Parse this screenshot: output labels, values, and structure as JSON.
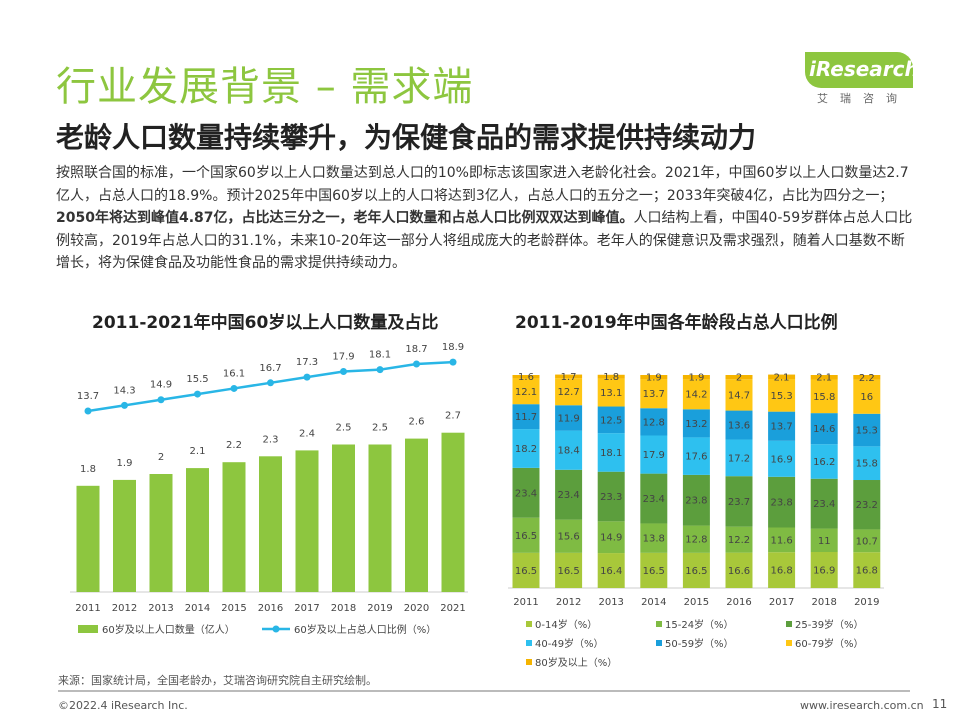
{
  "header": {
    "title": "行业发展背景 – 需求端",
    "subtitle": "老龄人口数量持续攀升，为保健食品的需求提供持续动力",
    "logo_text": "iResearch",
    "logo_sub": "艾瑞咨询"
  },
  "body": {
    "p1": "按照联合国的标准，一个国家60岁以上人口数量达到总人口的10%即标志该国家进入老龄化社会。2021年，中国60岁以上人口数量达2.7亿人，占总人口的18.9%。预计2025年中国60岁以上的人口将达到3亿人，占总人口的五分之一；2033年突破4亿，占比为四分之一；",
    "p1_bold": "2050年将达到峰值4.87亿，占比达三分之一，老年人口数量和占总人口比例双双达到峰值。",
    "p2": "人口结构上看，中国40-59岁群体占总人口比例较高，2019年占总人口的31.1%，未来10-20年这一部分人将组成庞大的老龄群体。老年人的保健意识及需求强烈，随着人口基数不断增长，将为保健食品及功能性食品的需求提供持续动力。"
  },
  "chart_data": [
    {
      "type": "bar",
      "title": "2011-2021年中国60岁以上人口数量及占比",
      "categories": [
        "2011",
        "2012",
        "2013",
        "2014",
        "2015",
        "2016",
        "2017",
        "2018",
        "2019",
        "2020",
        "2021"
      ],
      "series": [
        {
          "name": "60岁及以上人口数量（亿人）",
          "type": "bar",
          "color": "#8dc63f",
          "values": [
            1.8,
            1.9,
            2.0,
            2.1,
            2.2,
            2.3,
            2.4,
            2.5,
            2.5,
            2.6,
            2.7
          ]
        },
        {
          "name": "60岁及以上占总人口比例（%）",
          "type": "line",
          "color": "#29b6e6",
          "values": [
            13.7,
            14.3,
            14.9,
            15.5,
            16.1,
            16.7,
            17.3,
            17.9,
            18.1,
            18.7,
            18.9
          ]
        }
      ]
    },
    {
      "type": "bar",
      "stacked": true,
      "title": "2011-2019年中国各年龄段占总人口比例",
      "categories": [
        "2011",
        "2012",
        "2013",
        "2014",
        "2015",
        "2016",
        "2017",
        "2018",
        "2019"
      ],
      "series": [
        {
          "name": "0-14岁（%）",
          "color": "#a8c83a",
          "values": [
            16.5,
            16.5,
            16.4,
            16.5,
            16.5,
            16.6,
            16.8,
            16.9,
            16.8
          ]
        },
        {
          "name": "15-24岁（%）",
          "color": "#7fbb43",
          "values": [
            16.5,
            15.6,
            14.9,
            13.8,
            12.8,
            12.2,
            11.6,
            11.0,
            10.7
          ]
        },
        {
          "name": "25-39岁（%）",
          "color": "#5c9e3d",
          "values": [
            23.4,
            23.4,
            23.3,
            23.4,
            23.8,
            23.7,
            23.8,
            23.4,
            23.2
          ]
        },
        {
          "name": "40-49岁（%）",
          "color": "#2ec0ef",
          "values": [
            18.2,
            18.4,
            18.1,
            17.9,
            17.6,
            17.2,
            16.9,
            16.2,
            15.8
          ]
        },
        {
          "name": "50-59岁（%）",
          "color": "#1a9fdb",
          "values": [
            11.7,
            11.9,
            12.5,
            12.8,
            13.2,
            13.6,
            13.7,
            14.6,
            15.3
          ]
        },
        {
          "name": "60-79岁（%）",
          "color": "#ffc714",
          "values": [
            12.1,
            12.7,
            13.1,
            13.7,
            14.2,
            14.7,
            15.3,
            15.8,
            16.0
          ]
        },
        {
          "name": "80岁及以上（%）",
          "color": "#f5b400",
          "values": [
            1.6,
            1.7,
            1.8,
            1.9,
            1.9,
            2.0,
            2.1,
            2.1,
            2.2
          ]
        }
      ]
    }
  ],
  "footer": {
    "source": "来源：国家统计局，全国老龄办，艾瑞咨询研究院自主研究绘制。",
    "copyright": "©2022.4 iResearch Inc.",
    "url": "www.iresearch.com.cn",
    "page": "11"
  }
}
